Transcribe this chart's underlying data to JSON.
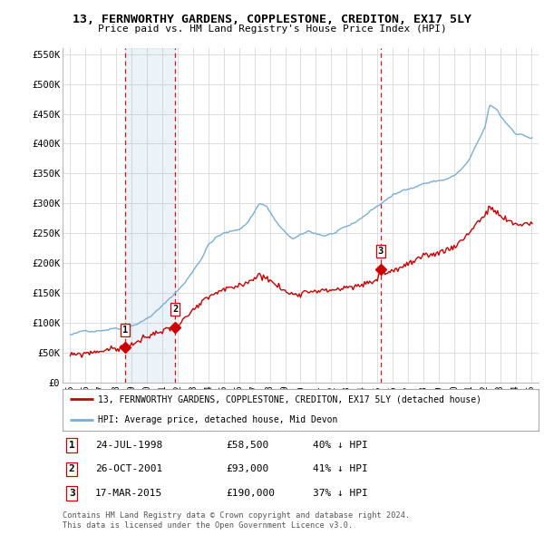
{
  "title": "13, FERNWORTHY GARDENS, COPPLESTONE, CREDITON, EX17 5LY",
  "subtitle": "Price paid vs. HM Land Registry's House Price Index (HPI)",
  "legend_line1": "13, FERNWORTHY GARDENS, COPPLESTONE, CREDITON, EX17 5LY (detached house)",
  "legend_line2": "HPI: Average price, detached house, Mid Devon",
  "footer1": "Contains HM Land Registry data © Crown copyright and database right 2024.",
  "footer2": "This data is licensed under the Open Government Licence v3.0.",
  "transactions": [
    {
      "num": 1,
      "date": "24-JUL-1998",
      "price": 58500,
      "pct": "40%",
      "dir": "↓",
      "year": 1998.56
    },
    {
      "num": 2,
      "date": "26-OCT-2001",
      "price": 93000,
      "pct": "41%",
      "dir": "↓",
      "year": 2001.83
    },
    {
      "num": 3,
      "date": "17-MAR-2015",
      "price": 190000,
      "pct": "37%",
      "dir": "↓",
      "year": 2015.21
    }
  ],
  "hpi_color": "#7aaed6",
  "hpi_fill_color": "#ddeeff",
  "price_color": "#cc0000",
  "vline_color": "#cc0000",
  "grid_color": "#dddddd",
  "background_color": "#ffffff",
  "ylim": [
    0,
    560000
  ],
  "yticks": [
    0,
    50000,
    100000,
    150000,
    200000,
    250000,
    300000,
    350000,
    400000,
    450000,
    500000,
    550000
  ],
  "xlim_start": 1994.5,
  "xlim_end": 2025.5,
  "xticks": [
    1995,
    1996,
    1997,
    1998,
    1999,
    2000,
    2001,
    2002,
    2003,
    2004,
    2005,
    2006,
    2007,
    2008,
    2009,
    2010,
    2011,
    2012,
    2013,
    2014,
    2015,
    2016,
    2017,
    2018,
    2019,
    2020,
    2021,
    2022,
    2023,
    2024,
    2025
  ]
}
